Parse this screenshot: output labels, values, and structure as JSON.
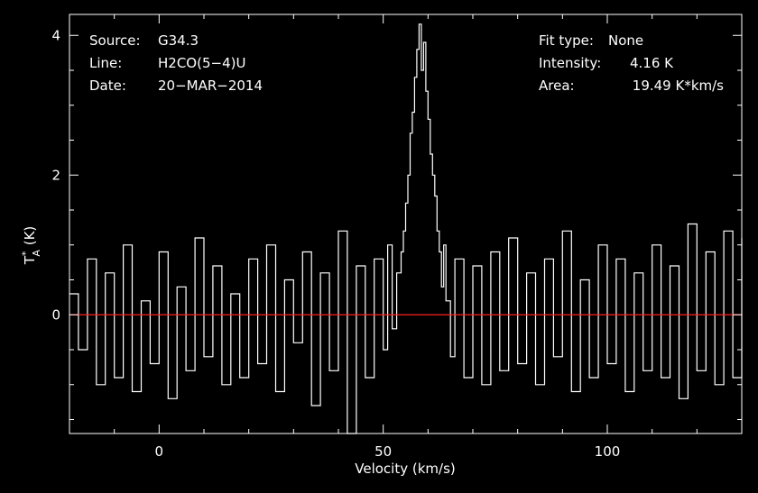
{
  "chart_data": {
    "type": "line",
    "title": "",
    "xlabel": "Velocity (km/s)",
    "ylabel": {
      "main": "T",
      "subscript": "A",
      "superscript": "*",
      "unit": " (K)"
    },
    "xlim": [
      -20,
      130
    ],
    "ylim": [
      -1.7,
      4.3
    ],
    "x_ticks": [
      0,
      50,
      100
    ],
    "x_tick_labels": [
      "0",
      "50",
      "100"
    ],
    "y_ticks": [
      0,
      2,
      4
    ],
    "y_tick_labels": [
      "0",
      "2",
      "4"
    ],
    "grid": false,
    "legend": "none",
    "annotations_left": [
      {
        "label": "Source:",
        "value": "G34.3"
      },
      {
        "label": "Line:",
        "value": "H2CO(5−4)U"
      },
      {
        "label": "Date:",
        "value": "20−MAR−2014"
      }
    ],
    "annotations_right": [
      {
        "label": "Fit type:",
        "value": "None"
      },
      {
        "label": "Intensity:",
        "value": "4.16 K"
      },
      {
        "label": "Area:",
        "value": "19.49 K*km/s"
      }
    ],
    "baseline": {
      "y": 0,
      "color": "#ff2020"
    },
    "colors": {
      "background": "#000000",
      "spectrum": "#ffffff",
      "axes": "#ffffff",
      "baseline": "#ff2020"
    },
    "spectrum": {
      "x": [
        -20,
        -18,
        -16,
        -14,
        -12,
        -10,
        -8,
        -6,
        -4,
        -2,
        0,
        2,
        4,
        6,
        8,
        10,
        12,
        14,
        16,
        18,
        20,
        22,
        24,
        26,
        28,
        30,
        32,
        34,
        36,
        38,
        40,
        42,
        44,
        46,
        48,
        50,
        51,
        52,
        53,
        54,
        54.5,
        55,
        55.5,
        56,
        56.5,
        57,
        57.5,
        58,
        58.5,
        59,
        59.5,
        60,
        60.5,
        61,
        61.5,
        62,
        62.5,
        63,
        63.5,
        64,
        65,
        66,
        68,
        70,
        72,
        74,
        76,
        78,
        80,
        82,
        84,
        86,
        88,
        90,
        92,
        94,
        96,
        98,
        100,
        102,
        104,
        106,
        108,
        110,
        112,
        114,
        116,
        118,
        120,
        122,
        124,
        126,
        128,
        130
      ],
      "y": [
        0.3,
        -0.5,
        0.8,
        -1.0,
        0.6,
        -0.9,
        1.0,
        -1.1,
        0.2,
        -0.7,
        0.9,
        -1.2,
        0.4,
        -0.8,
        1.1,
        -0.6,
        0.7,
        -1.0,
        0.3,
        -0.9,
        0.8,
        -0.7,
        1.0,
        -1.1,
        0.5,
        -0.4,
        0.9,
        -1.3,
        0.6,
        -0.8,
        1.2,
        -1.7,
        0.7,
        -0.9,
        0.8,
        -0.5,
        1.0,
        -0.2,
        0.6,
        0.9,
        1.2,
        1.6,
        2.0,
        2.6,
        2.9,
        3.4,
        3.8,
        4.16,
        3.5,
        3.9,
        3.2,
        2.8,
        2.3,
        2.0,
        1.7,
        1.2,
        0.9,
        0.4,
        1.0,
        0.2,
        -0.6,
        0.8,
        -0.9,
        0.7,
        -1.0,
        0.9,
        -0.8,
        1.1,
        -0.7,
        0.6,
        -1.0,
        0.8,
        -0.6,
        1.2,
        -1.1,
        0.5,
        -0.9,
        1.0,
        -0.7,
        0.8,
        -1.1,
        0.6,
        -0.8,
        1.0,
        -0.9,
        0.7,
        -1.2,
        1.3,
        -0.8,
        0.9,
        -1.0,
        1.2,
        -0.9,
        1.1
      ]
    }
  }
}
